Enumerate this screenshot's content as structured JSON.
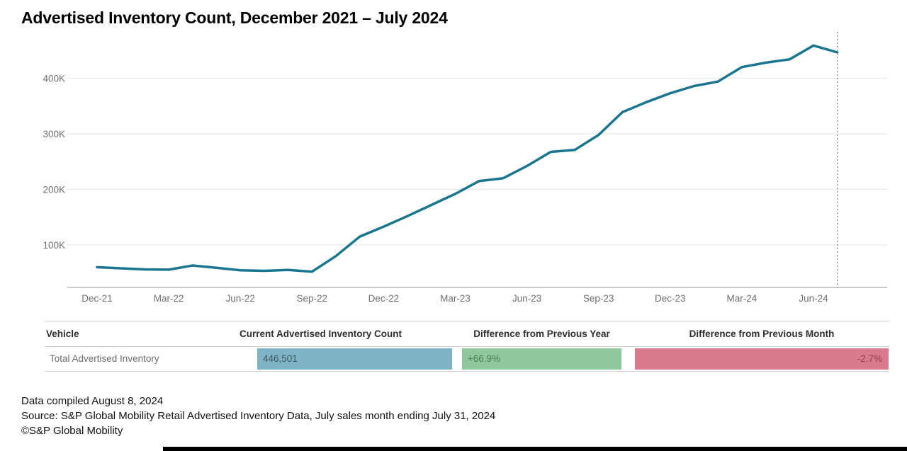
{
  "title": "Advertised Inventory Count, December 2021 – July 2024",
  "chart_data": {
    "type": "line",
    "title": "Advertised Inventory Count, December 2021 – July 2024",
    "series_name": "Total Advertised Inventory",
    "x": [
      "Dec-21",
      "Jan-22",
      "Feb-22",
      "Mar-22",
      "Apr-22",
      "May-22",
      "Jun-22",
      "Jul-22",
      "Aug-22",
      "Sep-22",
      "Oct-22",
      "Nov-22",
      "Dec-22",
      "Jan-23",
      "Feb-23",
      "Mar-23",
      "Apr-23",
      "May-23",
      "Jun-23",
      "Jul-23",
      "Aug-23",
      "Sep-23",
      "Oct-23",
      "Nov-23",
      "Dec-23",
      "Jan-24",
      "Feb-24",
      "Mar-24",
      "Apr-24",
      "May-24",
      "Jun-24",
      "Jul-24"
    ],
    "values": [
      60000,
      58000,
      56000,
      55500,
      63000,
      59000,
      54500,
      53500,
      55000,
      52000,
      80000,
      115000,
      133000,
      152000,
      172000,
      192000,
      215000,
      220000,
      242000,
      267526,
      271000,
      298000,
      339000,
      357000,
      373000,
      386000,
      394000,
      420000,
      428000,
      434000,
      458891,
      446501
    ],
    "xlabel": "",
    "ylabel": "",
    "y_ticks": [
      100000,
      200000,
      300000,
      400000
    ],
    "y_tick_labels": [
      "100K",
      "200K",
      "300K",
      "400K"
    ],
    "x_tick_every": 3,
    "ylim": [
      23000,
      483000
    ],
    "grid": true,
    "legend": "none",
    "annotation": "dotted vertical reference line at Jul-24 (last data point)"
  },
  "table": {
    "headers": {
      "vehicle": "Vehicle",
      "count": "Current Advertised Inventory Count",
      "prev_year": "Difference from Previous Year",
      "prev_month": "Difference from Previous Month"
    },
    "row": {
      "vehicle": "Total Advertised Inventory",
      "count": "446,501",
      "prev_year": "+66.9%",
      "prev_month": "-2.7%"
    }
  },
  "footer": {
    "compiled": "Data compiled August 8, 2024",
    "source": "Source: S&P Global Mobility Retail Advertised Inventory Data, July sales month ending July 31, 2024",
    "copyright": "©S&P Global Mobility"
  },
  "colors": {
    "line": "#1A768F",
    "grid": "#e8e8e8",
    "axis": "#c9c9c9",
    "tick_text": "#6f6f6f",
    "marker_line": "#8a8a8a",
    "cell_count_bg": "#7FB3C6",
    "cell_year_bg": "#8FC89B",
    "cell_month_bg": "#DA7A8D"
  }
}
